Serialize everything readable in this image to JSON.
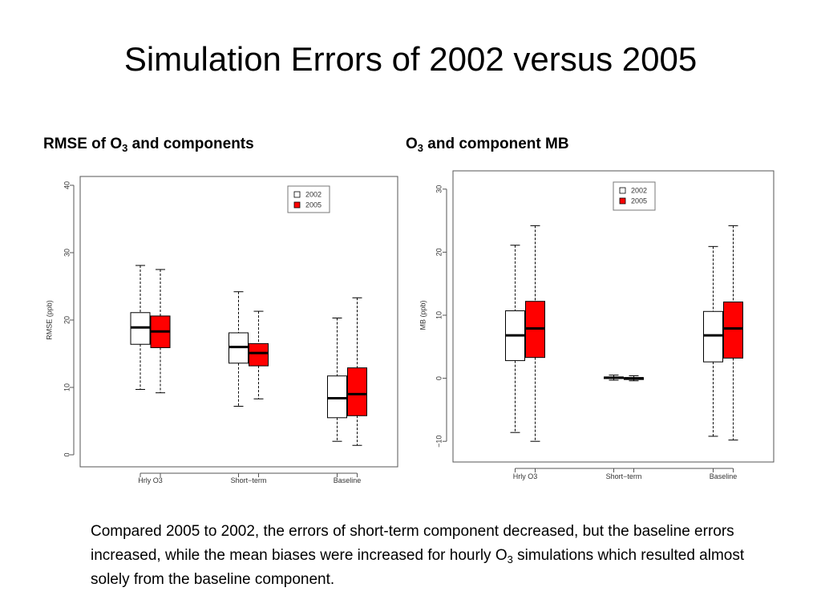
{
  "title": "Simulation Errors of 2002 versus 2005",
  "panels": {
    "left_label": {
      "text": "RMSE of O",
      "sub": "3",
      "after": " and components"
    },
    "right_label": {
      "text": "O",
      "sub": "3",
      "after": " and component MB"
    }
  },
  "caption": {
    "part1": "Compared 2005 to 2002, the errors of short-term component decreased, but the baseline errors increased, while the mean biases were increased for hourly O",
    "sub": "3",
    "part2": " simulations which resulted almost solely from the baseline component."
  },
  "colors": {
    "s2002": "#ffffff",
    "s2005": "#ff0000",
    "stroke": "#000000",
    "frame": "#555555"
  },
  "chart_data": [
    {
      "type": "boxplot",
      "ylabel": "RMSE (ppb)",
      "ylim": [
        0,
        40
      ],
      "yticks": [
        0,
        10,
        20,
        30,
        40
      ],
      "categories": [
        "Hrly O3",
        "Short−term",
        "Baseline"
      ],
      "legend": {
        "position": "top-right",
        "entries": [
          "2002",
          "2005"
        ]
      },
      "series": [
        {
          "name": "2002",
          "boxes": [
            {
              "min": 9.7,
              "q1": 16.4,
              "median": 18.9,
              "q3": 21.1,
              "max": 28.1
            },
            {
              "min": 7.2,
              "q1": 13.6,
              "median": 16.0,
              "q3": 18.1,
              "max": 24.2
            },
            {
              "min": 2.0,
              "q1": 5.5,
              "median": 8.4,
              "q3": 11.7,
              "max": 20.3
            }
          ]
        },
        {
          "name": "2005",
          "boxes": [
            {
              "min": 9.2,
              "q1": 15.9,
              "median": 18.3,
              "q3": 20.6,
              "max": 27.5
            },
            {
              "min": 8.3,
              "q1": 13.2,
              "median": 15.1,
              "q3": 16.5,
              "max": 21.3
            },
            {
              "min": 1.4,
              "q1": 5.8,
              "median": 9.0,
              "q3": 12.9,
              "max": 23.3
            }
          ]
        }
      ]
    },
    {
      "type": "boxplot",
      "ylabel": "MB (ppb)",
      "ylim": [
        -11.5,
        31.5
      ],
      "yticks": [
        -10,
        0,
        10,
        20,
        30
      ],
      "categories": [
        "Hrly O3",
        "Short−term",
        "Baseline"
      ],
      "legend": {
        "position": "top-right",
        "entries": [
          "2002",
          "2005"
        ]
      },
      "series": [
        {
          "name": "2002",
          "boxes": [
            {
              "min": -8.6,
              "q1": 2.8,
              "median": 6.8,
              "q3": 10.7,
              "max": 21.1
            },
            {
              "min": -0.3,
              "q1": -0.05,
              "median": 0.1,
              "q3": 0.2,
              "max": 0.5
            },
            {
              "min": -9.2,
              "q1": 2.6,
              "median": 6.8,
              "q3": 10.6,
              "max": 20.9
            }
          ]
        },
        {
          "name": "2005",
          "boxes": [
            {
              "min": -10.0,
              "q1": 3.3,
              "median": 7.9,
              "q3": 12.2,
              "max": 24.2
            },
            {
              "min": -0.4,
              "q1": -0.2,
              "median": 0.0,
              "q3": 0.1,
              "max": 0.4
            },
            {
              "min": -9.8,
              "q1": 3.2,
              "median": 7.9,
              "q3": 12.1,
              "max": 24.2
            }
          ]
        }
      ]
    }
  ]
}
